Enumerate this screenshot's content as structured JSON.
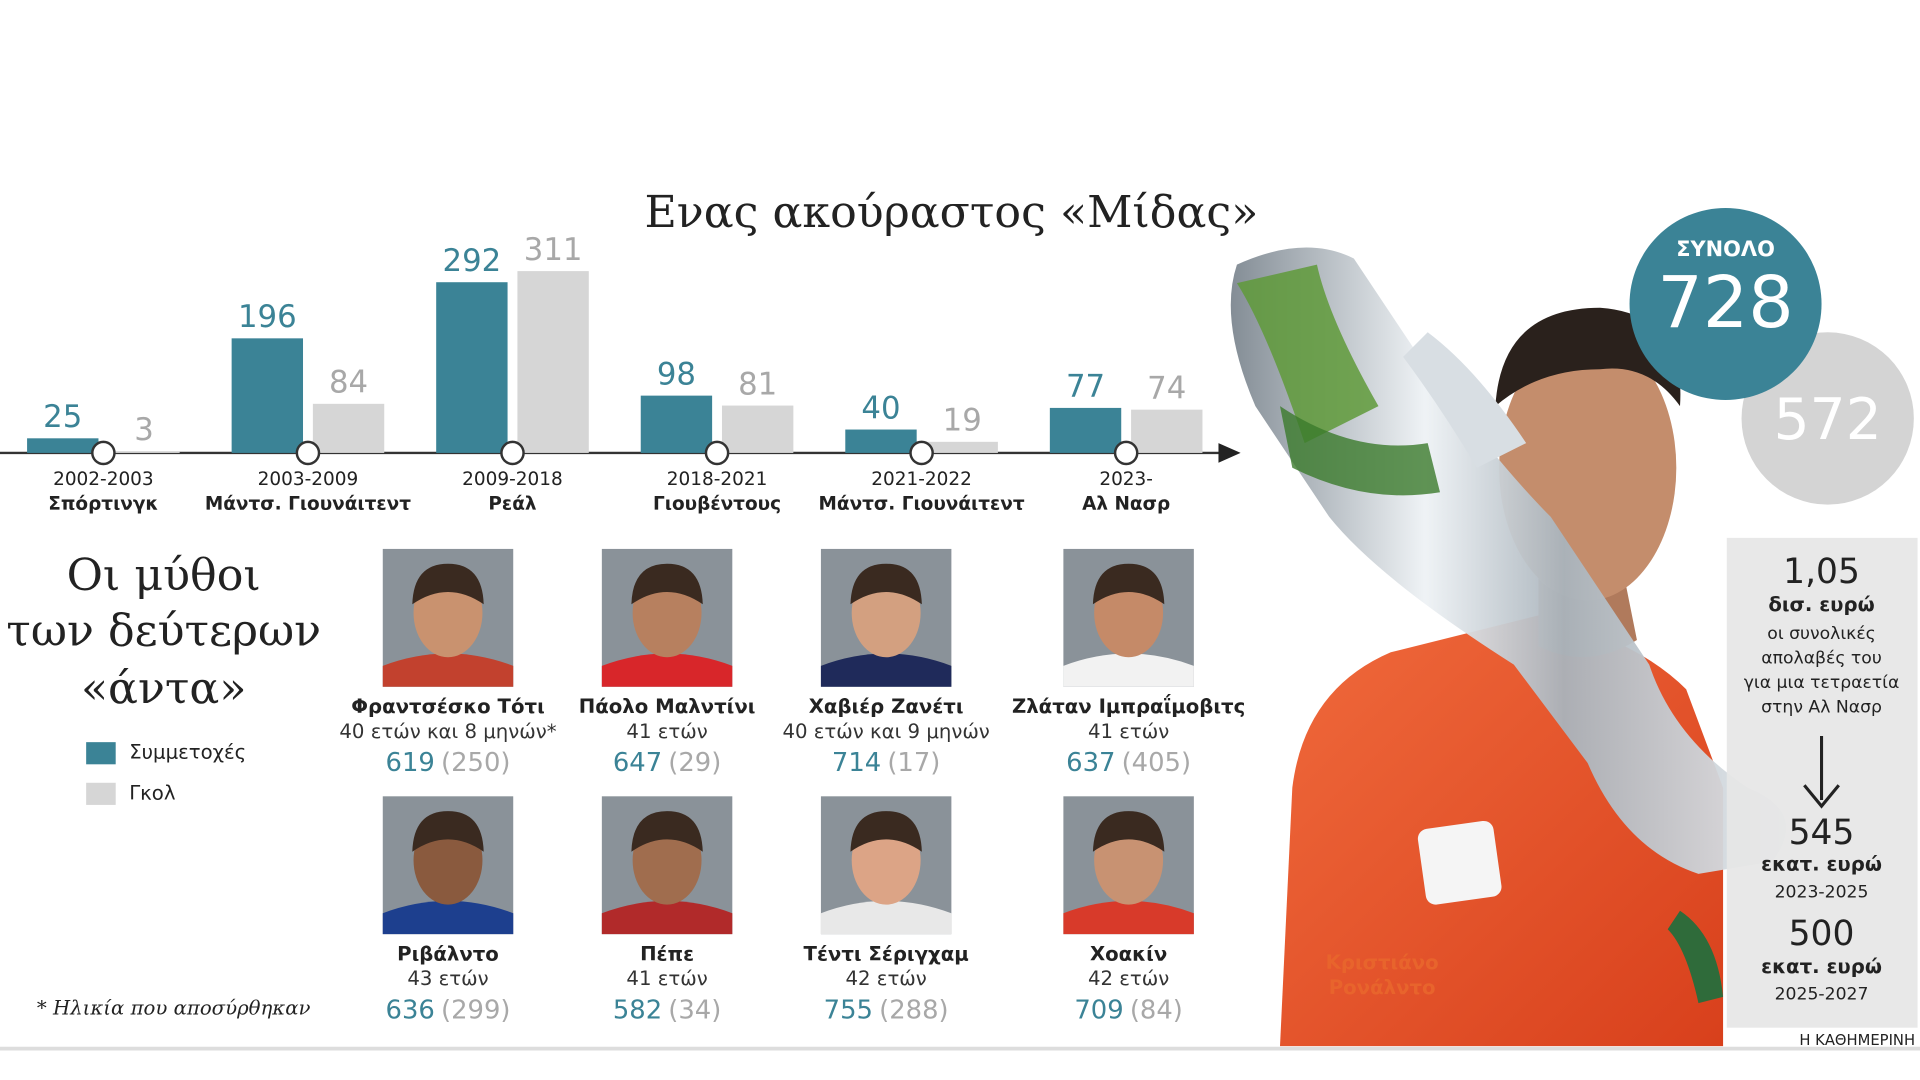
{
  "chart_data": {
    "type": "bar",
    "title": "Ενας ακούραστος «Μίδας»",
    "categories": [
      "2002-2003",
      "2003-2009",
      "2009-2018",
      "2018-2021",
      "2021-2022",
      "2023-"
    ],
    "clubs": [
      "Σπόρτινγκ",
      "Μάντσ. Γιουνάιτεντ",
      "Ρεάλ",
      "Γιουβέντους",
      "Μάντσ. Γιουνάιτεντ",
      "Αλ Νασρ"
    ],
    "series": [
      {
        "name": "Συμμετοχές",
        "color": "#3b8396",
        "values": [
          25,
          196,
          292,
          98,
          40,
          77
        ]
      },
      {
        "name": "Γκολ",
        "color": "#d6d6d6",
        "values": [
          3,
          84,
          311,
          81,
          19,
          74
        ]
      }
    ],
    "ylim": [
      0,
      320
    ]
  },
  "total": {
    "label": "ΣΥΝΟΛΟ",
    "appearances": 728,
    "goals": 572
  },
  "legends": {
    "title_lines": [
      "Οι μύθοι",
      "των δεύτερων",
      "«άντα»"
    ],
    "note": "* Ηλικία που αποσύρθηκαν",
    "players": [
      {
        "name": "Φραντσέσκο Τότι",
        "age": "40 ετών και 8 μηνών*",
        "appearances": 619,
        "goals": "(250)"
      },
      {
        "name": "Πάολο Μαλντίνι",
        "age": "41 ετών",
        "appearances": 647,
        "goals": "(29)"
      },
      {
        "name": "Χαβιέρ Ζανέτι",
        "age": "40 ετών και 9 μηνών",
        "appearances": 714,
        "goals": "(17)"
      },
      {
        "name": "Ζλάταν Ιμπραΐμοβιτς",
        "age": "41 ετών",
        "appearances": 637,
        "goals": "(405)"
      },
      {
        "name": "Ριβάλντο",
        "age": "43 ετών",
        "appearances": 636,
        "goals": "(299)"
      },
      {
        "name": "Πέπε",
        "age": "41 ετών",
        "appearances": 582,
        "goals": "(34)"
      },
      {
        "name": "Τέντι Σέριγχαμ",
        "age": "42 ετών",
        "appearances": 755,
        "goals": "(288)"
      },
      {
        "name": "Χοακίν",
        "age": "42 ετών",
        "appearances": 709,
        "goals": "(84)"
      }
    ]
  },
  "earnings": {
    "total": "1,05",
    "total_unit": "δισ. ευρώ",
    "description_lines": [
      "οι συνολικές",
      "απολαβές του",
      "για μια τετραετία",
      "στην Αλ Νασρ"
    ],
    "first": "545",
    "first_unit": "εκατ. ευρώ",
    "first_period": "2023-2025",
    "second": "500",
    "second_unit": "εκατ. ευρώ",
    "second_period": "2025-2027"
  },
  "player_caption_lines": [
    "Κριστιάνο",
    "Ρονάλντο"
  ],
  "source": "Η ΚΑΘΗΜΕΡΙΝΗ"
}
